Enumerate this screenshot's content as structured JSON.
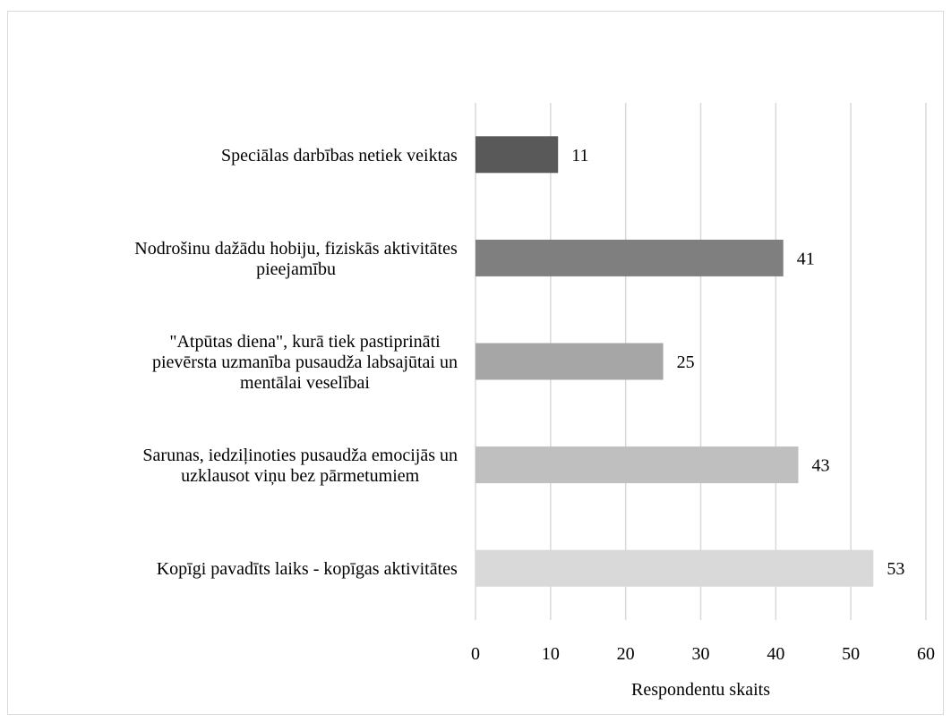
{
  "chart_data": {
    "type": "bar",
    "orientation": "horizontal",
    "categories": [
      [
        "Speciālas darbības netiek veiktas"
      ],
      [
        "Nodrošinu dažādu hobiju, fiziskās aktivitātes",
        "pieejamību"
      ],
      [
        "\"Atpūtas diena\", kurā tiek pastiprināti",
        "pievērsta uzmanība pusaudža labsajūtai un",
        "mentālai veselībai"
      ],
      [
        "Sarunas, iedziļinoties pusaudža emocijās un",
        "uzklausot viņu bez pārmetumiem"
      ],
      [
        "Kopīgi pavadīts laiks - kopīgas aktivitātes"
      ]
    ],
    "values": [
      11,
      41,
      25,
      43,
      53
    ],
    "value_labels": [
      "11",
      "41",
      "25",
      "43",
      "53"
    ],
    "bar_colors": [
      "#595959",
      "#7f7f7f",
      "#a6a6a6",
      "#bfbfbf",
      "#d9d9d9"
    ],
    "xlabel": "Respondentu skaits",
    "xlim": [
      0,
      60
    ],
    "xticks": [
      0,
      10,
      20,
      30,
      40,
      50,
      60
    ],
    "xtick_labels": [
      "0",
      "10",
      "20",
      "30",
      "40",
      "50",
      "60"
    ],
    "grid": true,
    "grid_color": "#d9d9d9"
  }
}
